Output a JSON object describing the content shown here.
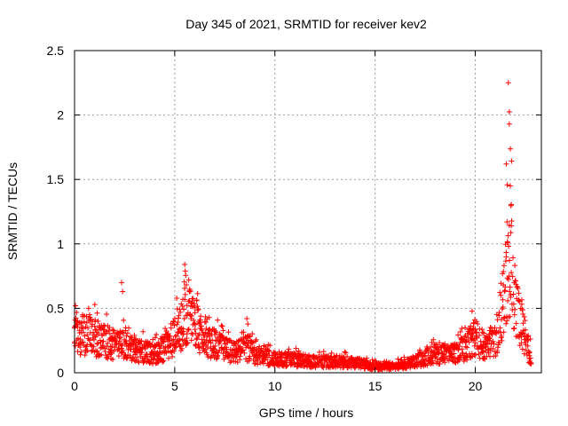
{
  "chart_data": {
    "type": "scatter",
    "title": "Day 345 of 2021, SRMTID for receiver kev2",
    "xlabel": "GPS time / hours",
    "ylabel": "SRMTID / TECUs",
    "xlim": [
      0,
      23.3
    ],
    "ylim": [
      0,
      2.5
    ],
    "x_ticks": [
      0,
      5,
      10,
      15,
      20
    ],
    "x_tick_labels": [
      "0",
      "5",
      "10",
      "15",
      "20"
    ],
    "y_ticks": [
      0,
      0.5,
      1,
      1.5,
      2,
      2.5
    ],
    "y_tick_labels": [
      "0",
      "0.5",
      "1",
      "1.5",
      "2",
      "2.5"
    ],
    "grid": true,
    "marker": "+",
    "colors": {
      "series": "#ff0000",
      "grid": "#a0a0a0",
      "axes": "#000000"
    },
    "series": [
      {
        "name": "SRMTID",
        "envelope": [
          [
            0.0,
            0.3
          ],
          [
            0.5,
            0.3
          ],
          [
            1.0,
            0.28
          ],
          [
            1.5,
            0.25
          ],
          [
            2.0,
            0.22
          ],
          [
            2.5,
            0.22
          ],
          [
            3.0,
            0.18
          ],
          [
            3.5,
            0.17
          ],
          [
            4.0,
            0.15
          ],
          [
            4.5,
            0.2
          ],
          [
            5.0,
            0.3
          ],
          [
            5.5,
            0.42
          ],
          [
            5.8,
            0.45
          ],
          [
            6.2,
            0.35
          ],
          [
            6.8,
            0.25
          ],
          [
            7.5,
            0.18
          ],
          [
            8.0,
            0.16
          ],
          [
            8.7,
            0.2
          ],
          [
            9.0,
            0.15
          ],
          [
            10.0,
            0.11
          ],
          [
            11.0,
            0.1
          ],
          [
            12.0,
            0.09
          ],
          [
            13.0,
            0.09
          ],
          [
            14.0,
            0.08
          ],
          [
            15.0,
            0.05
          ],
          [
            16.0,
            0.05
          ],
          [
            17.0,
            0.09
          ],
          [
            18.0,
            0.15
          ],
          [
            19.0,
            0.15
          ],
          [
            19.5,
            0.2
          ],
          [
            20.0,
            0.28
          ],
          [
            20.5,
            0.2
          ],
          [
            21.0,
            0.25
          ],
          [
            21.3,
            0.5
          ],
          [
            21.6,
            0.9
          ],
          [
            21.8,
            0.9
          ],
          [
            22.0,
            0.55
          ],
          [
            22.3,
            0.4
          ],
          [
            22.6,
            0.2
          ],
          [
            22.8,
            0.12
          ]
        ],
        "peaks": [
          [
            0.05,
            0.52
          ],
          [
            0.7,
            0.5
          ],
          [
            2.35,
            0.7
          ],
          [
            5.5,
            0.84
          ],
          [
            5.7,
            0.72
          ],
          [
            8.6,
            0.42
          ],
          [
            21.55,
            1.62
          ],
          [
            21.65,
            2.25
          ],
          [
            21.7,
            1.93
          ],
          [
            21.75,
            1.45
          ]
        ]
      }
    ]
  }
}
